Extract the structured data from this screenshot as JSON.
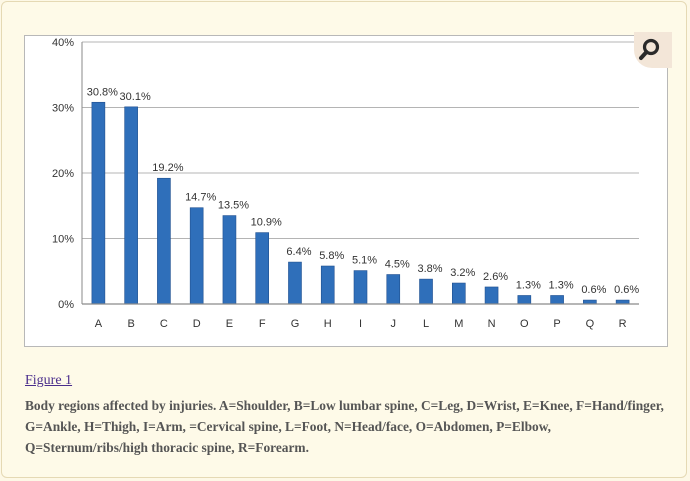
{
  "figure": {
    "link_label": "Figure 1",
    "caption": "Body regions affected by injuries. A=Shoulder, B=Low lumbar spine, C=Leg, D=Wrist, E=Knee, F=Hand/finger, G=Ankle, H=Thigh, I=Arm, =Cervical spine, L=Foot, N=Head/face, O=Abdomen, P=Elbow, Q=Sternum/ribs/high thoracic spine, R=Forearm."
  },
  "zoom_button": {
    "icon": "magnifier-icon"
  },
  "colors": {
    "bar": "#2f6fba",
    "bar_dark": "#1f4f8f",
    "grid": "#b4b4b4",
    "text": "#333333",
    "link": "#4a2d8c",
    "background": "#fefae8"
  },
  "chart_data": {
    "type": "bar",
    "categories": [
      "A",
      "B",
      "C",
      "D",
      "E",
      "F",
      "G",
      "H",
      "I",
      "J",
      "L",
      "M",
      "N",
      "O",
      "P",
      "Q",
      "R"
    ],
    "values": [
      30.8,
      30.1,
      19.2,
      14.7,
      13.5,
      10.9,
      6.4,
      5.8,
      5.1,
      4.5,
      3.8,
      3.2,
      2.6,
      1.3,
      1.3,
      0.6,
      0.6
    ],
    "data_labels": [
      "30.8%",
      "30.1%",
      "19.2%",
      "14.7%",
      "13.5%",
      "10.9%",
      "6.4%",
      "5.8%",
      "5.1%",
      "4.5%",
      "3.8%",
      "3.2%",
      "2.6%",
      "1.3%",
      "1.3%",
      "0.6%",
      "0.6%"
    ],
    "yticks": [
      0,
      10,
      20,
      30,
      40
    ],
    "ytick_labels": [
      "0%",
      "10%",
      "20%",
      "30%",
      "40%"
    ],
    "ylim": [
      0,
      40
    ],
    "title": "",
    "xlabel": "",
    "ylabel": "",
    "grid": true,
    "legend": "none"
  }
}
